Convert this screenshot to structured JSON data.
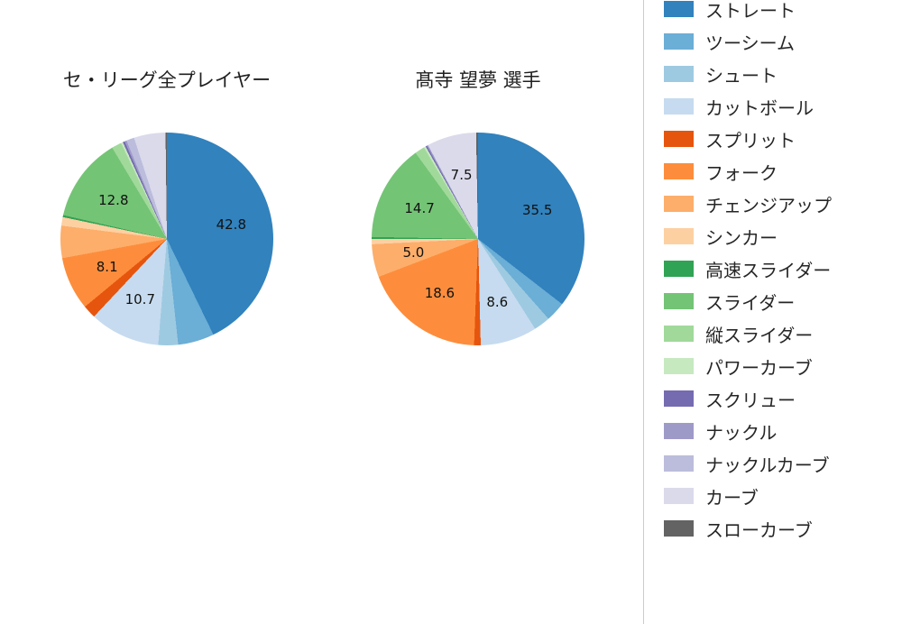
{
  "chart_data": [
    {
      "type": "pie",
      "title": "セ・リーグ全プレイヤー",
      "unit": "percent",
      "start_angle": "12-oclock",
      "direction": "clockwise",
      "slices": [
        {
          "label": "ストレート",
          "value": 42.8,
          "show_label": true
        },
        {
          "label": "ツーシーム",
          "value": 5.5,
          "show_label": false
        },
        {
          "label": "シュート",
          "value": 3.0,
          "show_label": false
        },
        {
          "label": "カットボール",
          "value": 10.7,
          "show_label": true
        },
        {
          "label": "スプリット",
          "value": 2.0,
          "show_label": false
        },
        {
          "label": "フォーク",
          "value": 8.1,
          "show_label": true
        },
        {
          "label": "チェンジアップ",
          "value": 4.9,
          "show_label": false
        },
        {
          "label": "シンカー",
          "value": 1.3,
          "show_label": false
        },
        {
          "label": "高速スライダー",
          "value": 0.3,
          "show_label": false
        },
        {
          "label": "スライダー",
          "value": 12.8,
          "show_label": true
        },
        {
          "label": "縦スライダー",
          "value": 1.5,
          "show_label": false
        },
        {
          "label": "パワーカーブ",
          "value": 0.3,
          "show_label": false
        },
        {
          "label": "スクリュー",
          "value": 0.3,
          "show_label": false
        },
        {
          "label": "ナックル",
          "value": 0.3,
          "show_label": false
        },
        {
          "label": "ナックルカーブ",
          "value": 1.2,
          "show_label": false
        },
        {
          "label": "カーブ",
          "value": 4.8,
          "show_label": false
        },
        {
          "label": "スローカーブ",
          "value": 0.2,
          "show_label": false
        }
      ]
    },
    {
      "type": "pie",
      "title": "髙寺 望夢 選手",
      "unit": "percent",
      "start_angle": "12-oclock",
      "direction": "clockwise",
      "slices": [
        {
          "label": "ストレート",
          "value": 35.5,
          "show_label": true
        },
        {
          "label": "ツーシーム",
          "value": 3.0,
          "show_label": false
        },
        {
          "label": "シュート",
          "value": 2.5,
          "show_label": false
        },
        {
          "label": "カットボール",
          "value": 8.6,
          "show_label": true
        },
        {
          "label": "スプリット",
          "value": 1.0,
          "show_label": false
        },
        {
          "label": "フォーク",
          "value": 18.6,
          "show_label": true
        },
        {
          "label": "チェンジアップ",
          "value": 5.0,
          "show_label": true
        },
        {
          "label": "シンカー",
          "value": 0.8,
          "show_label": false
        },
        {
          "label": "高速スライダー",
          "value": 0.3,
          "show_label": false
        },
        {
          "label": "スライダー",
          "value": 14.7,
          "show_label": true
        },
        {
          "label": "縦スライダー",
          "value": 1.5,
          "show_label": false
        },
        {
          "label": "パワーカーブ",
          "value": 0.3,
          "show_label": false
        },
        {
          "label": "スクリュー",
          "value": 0.2,
          "show_label": false
        },
        {
          "label": "ナックル",
          "value": 0.2,
          "show_label": false
        },
        {
          "label": "ナックルカーブ",
          "value": 0.0,
          "show_label": false
        },
        {
          "label": "カーブ",
          "value": 7.5,
          "show_label": true
        },
        {
          "label": "スローカーブ",
          "value": 0.3,
          "show_label": false
        }
      ]
    }
  ],
  "legend": {
    "items": [
      {
        "label": "ストレート",
        "color": "#3182bd"
      },
      {
        "label": "ツーシーム",
        "color": "#6baed6"
      },
      {
        "label": "シュート",
        "color": "#9ecae1"
      },
      {
        "label": "カットボール",
        "color": "#c6dbef"
      },
      {
        "label": "スプリット",
        "color": "#e6550d"
      },
      {
        "label": "フォーク",
        "color": "#fd8d3c"
      },
      {
        "label": "チェンジアップ",
        "color": "#fdae6b"
      },
      {
        "label": "シンカー",
        "color": "#fdd0a2"
      },
      {
        "label": "高速スライダー",
        "color": "#31a354"
      },
      {
        "label": "スライダー",
        "color": "#74c476"
      },
      {
        "label": "縦スライダー",
        "color": "#a1d99b"
      },
      {
        "label": "パワーカーブ",
        "color": "#c7e9c0"
      },
      {
        "label": "スクリュー",
        "color": "#756bb1"
      },
      {
        "label": "ナックル",
        "color": "#9e9ac8"
      },
      {
        "label": "ナックルカーブ",
        "color": "#bcbddc"
      },
      {
        "label": "カーブ",
        "color": "#dadaeb"
      },
      {
        "label": "スローカーブ",
        "color": "#636363"
      }
    ]
  }
}
